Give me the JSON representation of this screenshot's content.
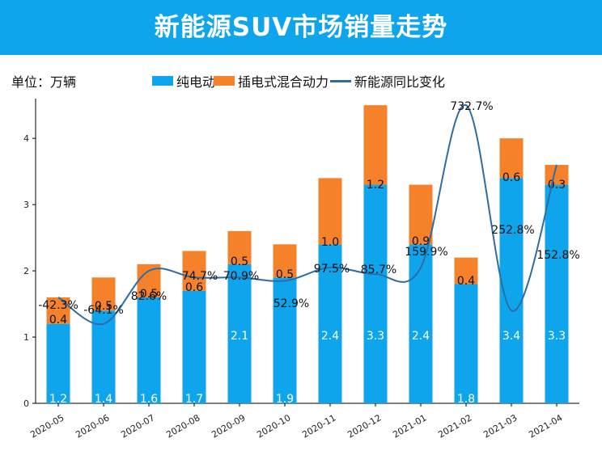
{
  "header": {
    "title": "新能源SUV市场销量走势"
  },
  "unit_label": "单位：万辆",
  "colors": {
    "title_bg": "#0ea5ec",
    "bev": "#0ea5ec",
    "phev": "#f5822a",
    "line": "#2e6da4"
  },
  "chart_data": {
    "type": "bar",
    "stacked": true,
    "title": "新能源SUV市场销量走势",
    "unit": "万辆",
    "categories": [
      "2020-05",
      "2020-06",
      "2020-07",
      "2020-08",
      "2020-09",
      "2020-10",
      "2020-11",
      "2020-12",
      "2021-01",
      "2021-02",
      "2021-03",
      "2021-04"
    ],
    "series": [
      {
        "name": "纯电动",
        "type": "bar",
        "values": [
          1.2,
          1.4,
          1.6,
          1.7,
          2.1,
          1.9,
          2.4,
          3.3,
          2.4,
          1.8,
          3.4,
          3.3
        ],
        "labels": [
          "1.2",
          "1.4",
          "1.6",
          "1.7",
          "2.1",
          "1.9",
          "2.4",
          "3.3",
          "2.4",
          "1.8",
          "3.4",
          "3.3"
        ]
      },
      {
        "name": "插电式混合动力",
        "type": "bar",
        "values": [
          0.4,
          0.5,
          0.5,
          0.6,
          0.5,
          0.5,
          1.0,
          1.2,
          0.9,
          0.4,
          0.6,
          0.3
        ],
        "labels": [
          "0.4",
          "0.5",
          "0.5",
          "0.6",
          "0.5",
          "0.5",
          "1.0",
          "1.2",
          "0.9",
          "0.4",
          "0.6",
          "0.3"
        ]
      },
      {
        "name": "新能源同比变化",
        "type": "line",
        "labels": [
          "-42.3%",
          "-64.1%",
          "82.6%",
          "74.7%",
          "70.9%",
          "52.9%",
          "97.5%",
          "85.7%",
          "159.9%",
          "732.7%",
          "252.8%",
          "152.8%"
        ],
        "curve_values": [
          1.6,
          1.2,
          2.0,
          1.9,
          1.9,
          1.85,
          2.05,
          1.95,
          2.05,
          4.5,
          1.4,
          3.6
        ]
      }
    ],
    "yticks": [
      "0",
      "1",
      "2",
      "3",
      "4"
    ],
    "ylim": [
      0,
      4.6
    ],
    "legend": "top"
  }
}
